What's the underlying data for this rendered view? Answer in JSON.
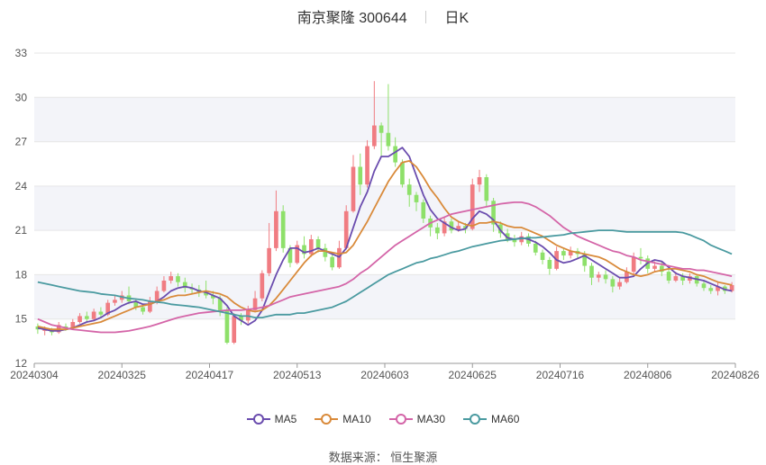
{
  "header": {
    "title": "南京聚隆 300644",
    "period": "日K"
  },
  "source": "数据来源： 恒生聚源",
  "chart_data": {
    "type": "candlestick",
    "ylim": [
      12,
      33
    ],
    "yticks": [
      12,
      15,
      18,
      21,
      24,
      27,
      30,
      33
    ],
    "xticks": [
      "20240304",
      "20240325",
      "20240417",
      "20240513",
      "20240603",
      "20240625",
      "20240716",
      "20240806",
      "20240826"
    ],
    "colors": {
      "up": "#f07c82",
      "down": "#8ee06a",
      "MA5": "#6a4cae",
      "MA10": "#d98a3a",
      "MA30": "#d465a8",
      "MA60": "#4a9aa0"
    },
    "legend": [
      "MA5",
      "MA10",
      "MA30",
      "MA60"
    ],
    "candles": [
      [
        14.5,
        14.3,
        14.7,
        14.0
      ],
      [
        14.2,
        14.3,
        14.5,
        13.9
      ],
      [
        14.3,
        14.1,
        14.4,
        13.9
      ],
      [
        14.1,
        14.6,
        14.8,
        14.0
      ],
      [
        14.5,
        14.4,
        14.7,
        14.2
      ],
      [
        14.4,
        14.8,
        15.0,
        14.3
      ],
      [
        14.8,
        15.2,
        15.4,
        14.7
      ],
      [
        15.2,
        15.0,
        15.5,
        14.8
      ],
      [
        15.0,
        15.5,
        15.7,
        14.9
      ],
      [
        15.5,
        15.3,
        15.8,
        15.1
      ],
      [
        15.3,
        16.1,
        16.3,
        15.2
      ],
      [
        16.1,
        16.3,
        16.6,
        15.9
      ],
      [
        16.3,
        16.6,
        16.9,
        16.1
      ],
      [
        16.6,
        16.2,
        17.2,
        16.0
      ],
      [
        16.2,
        15.8,
        16.4,
        15.6
      ],
      [
        15.8,
        15.5,
        16.0,
        15.3
      ],
      [
        15.5,
        16.2,
        16.5,
        15.4
      ],
      [
        16.2,
        16.9,
        17.2,
        16.0
      ],
      [
        16.9,
        17.6,
        17.9,
        16.8
      ],
      [
        17.6,
        17.9,
        18.2,
        17.4
      ],
      [
        17.9,
        17.5,
        18.1,
        17.2
      ],
      [
        17.5,
        17.1,
        17.8,
        16.8
      ],
      [
        17.1,
        17.0,
        17.4,
        16.7
      ],
      [
        17.0,
        16.8,
        17.3,
        16.5
      ],
      [
        16.8,
        16.6,
        17.6,
        16.4
      ],
      [
        16.6,
        16.4,
        16.9,
        16.0
      ],
      [
        16.4,
        15.6,
        16.6,
        15.2
      ],
      [
        15.6,
        13.4,
        15.8,
        13.3
      ],
      [
        13.4,
        15.2,
        15.4,
        13.3
      ],
      [
        15.2,
        14.9,
        15.4,
        14.6
      ],
      [
        14.9,
        15.6,
        15.9,
        14.7
      ],
      [
        15.6,
        16.4,
        16.9,
        15.5
      ],
      [
        16.4,
        18.1,
        18.3,
        16.2
      ],
      [
        18.1,
        19.8,
        21.5,
        17.9
      ],
      [
        19.8,
        22.3,
        23.7,
        19.6
      ],
      [
        22.3,
        19.8,
        22.7,
        19.5
      ],
      [
        19.8,
        18.8,
        20.0,
        18.5
      ],
      [
        18.8,
        20.0,
        20.3,
        18.7
      ],
      [
        20.0,
        19.4,
        20.6,
        19.1
      ],
      [
        19.4,
        20.4,
        20.7,
        19.2
      ],
      [
        20.4,
        19.8,
        20.6,
        19.5
      ],
      [
        19.8,
        19.2,
        20.1,
        18.9
      ],
      [
        19.2,
        18.5,
        19.4,
        18.3
      ],
      [
        18.5,
        19.8,
        20.3,
        18.4
      ],
      [
        19.8,
        22.3,
        22.7,
        19.7
      ],
      [
        22.3,
        25.3,
        26.1,
        22.2
      ],
      [
        25.3,
        24.1,
        26.2,
        23.4
      ],
      [
        24.1,
        26.7,
        27.1,
        23.9
      ],
      [
        26.7,
        28.1,
        31.1,
        26.5
      ],
      [
        28.1,
        27.6,
        28.3,
        26.0
      ],
      [
        27.6,
        26.7,
        30.9,
        26.4
      ],
      [
        26.7,
        25.6,
        27.3,
        25.3
      ],
      [
        25.6,
        24.1,
        25.8,
        23.9
      ],
      [
        24.1,
        23.4,
        24.5,
        22.6
      ],
      [
        23.4,
        22.9,
        23.6,
        22.3
      ],
      [
        22.9,
        21.8,
        23.1,
        21.5
      ],
      [
        21.8,
        21.2,
        22.0,
        20.6
      ],
      [
        21.2,
        20.8,
        21.5,
        20.4
      ],
      [
        20.8,
        21.6,
        21.9,
        20.6
      ],
      [
        21.6,
        21.0,
        21.8,
        20.8
      ],
      [
        21.0,
        21.3,
        21.6,
        20.9
      ],
      [
        21.3,
        21.1,
        21.5,
        20.8
      ],
      [
        21.1,
        24.1,
        24.5,
        21.0
      ],
      [
        24.1,
        24.6,
        25.1,
        23.6
      ],
      [
        24.6,
        23.0,
        24.8,
        22.6
      ],
      [
        23.0,
        21.4,
        23.2,
        20.9
      ],
      [
        21.4,
        20.8,
        21.6,
        20.5
      ],
      [
        20.8,
        20.4,
        21.1,
        20.2
      ],
      [
        20.4,
        20.2,
        20.7,
        19.9
      ],
      [
        20.2,
        20.6,
        20.9,
        20.0
      ],
      [
        20.6,
        20.1,
        20.8,
        19.9
      ],
      [
        20.1,
        19.5,
        20.3,
        19.3
      ],
      [
        19.5,
        19.0,
        19.7,
        18.7
      ],
      [
        19.0,
        18.4,
        19.2,
        18.0
      ],
      [
        18.4,
        19.6,
        19.9,
        18.3
      ],
      [
        19.6,
        19.3,
        19.8,
        19.0
      ],
      [
        19.3,
        19.6,
        19.9,
        19.1
      ],
      [
        19.6,
        19.4,
        19.8,
        19.1
      ],
      [
        19.4,
        18.6,
        19.6,
        18.2
      ],
      [
        18.6,
        17.8,
        18.8,
        17.3
      ],
      [
        17.8,
        18.0,
        18.2,
        17.5
      ],
      [
        18.0,
        17.7,
        18.3,
        17.4
      ],
      [
        17.7,
        17.2,
        17.9,
        16.8
      ],
      [
        17.2,
        17.5,
        17.8,
        17.0
      ],
      [
        17.5,
        18.2,
        18.5,
        17.4
      ],
      [
        18.2,
        19.2,
        19.5,
        18.0
      ],
      [
        19.2,
        19.1,
        19.8,
        18.7
      ],
      [
        19.1,
        18.4,
        19.3,
        18.1
      ],
      [
        18.4,
        18.6,
        18.9,
        18.2
      ],
      [
        18.6,
        18.2,
        18.9,
        17.9
      ],
      [
        18.2,
        17.6,
        18.4,
        17.4
      ],
      [
        17.6,
        17.9,
        18.2,
        17.5
      ],
      [
        17.9,
        17.6,
        18.1,
        17.3
      ],
      [
        17.6,
        17.9,
        18.1,
        17.4
      ],
      [
        17.9,
        17.4,
        18.0,
        17.2
      ],
      [
        17.4,
        17.1,
        17.6,
        16.9
      ],
      [
        17.1,
        16.9,
        17.3,
        16.7
      ],
      [
        16.9,
        17.2,
        17.5,
        16.6
      ],
      [
        17.2,
        16.9,
        17.3,
        16.7
      ],
      [
        16.9,
        17.3,
        17.5,
        16.8
      ]
    ],
    "ma": {
      "MA5": [
        14.4,
        14.3,
        14.2,
        14.2,
        14.3,
        14.4,
        14.6,
        14.8,
        14.9,
        15.1,
        15.4,
        15.6,
        15.9,
        16.1,
        16.2,
        16.0,
        16.0,
        16.2,
        16.5,
        16.9,
        17.1,
        17.2,
        17.1,
        16.9,
        16.8,
        16.6,
        16.4,
        15.9,
        15.2,
        14.9,
        14.6,
        14.9,
        15.6,
        16.8,
        18.0,
        19.0,
        19.8,
        19.8,
        19.5,
        19.6,
        19.8,
        19.6,
        19.4,
        19.2,
        19.8,
        21.2,
        22.6,
        23.6,
        25.0,
        26.0,
        26.0,
        26.3,
        26.6,
        26.0,
        24.7,
        23.4,
        22.4,
        21.8,
        21.5,
        21.2,
        21.0,
        21.1,
        21.8,
        22.3,
        22.1,
        21.7,
        21.0,
        20.5,
        20.4,
        20.5,
        20.4,
        20.2,
        19.9,
        19.5,
        19.0,
        18.8,
        18.9,
        19.1,
        19.3,
        19.0,
        18.7,
        18.4,
        18.1,
        17.8,
        17.8,
        17.9,
        18.4,
        18.8,
        19.0,
        18.9,
        18.5,
        18.1,
        17.9,
        17.8,
        17.7,
        17.6,
        17.4,
        17.2,
        17.0,
        16.9
      ],
      "MA10": [
        14.5,
        14.4,
        14.3,
        14.3,
        14.3,
        14.4,
        14.5,
        14.6,
        14.7,
        14.8,
        15.0,
        15.2,
        15.4,
        15.6,
        15.8,
        15.9,
        16.0,
        16.2,
        16.3,
        16.5,
        16.6,
        16.6,
        16.7,
        16.8,
        16.9,
        16.8,
        16.7,
        16.5,
        16.1,
        15.8,
        15.6,
        15.5,
        15.6,
        15.9,
        16.4,
        17.0,
        17.6,
        18.2,
        18.8,
        19.3,
        19.6,
        19.6,
        19.5,
        19.4,
        19.5,
        20.0,
        20.8,
        21.6,
        22.5,
        23.4,
        24.3,
        25.0,
        25.6,
        25.7,
        25.3,
        24.6,
        23.8,
        23.2,
        22.5,
        21.9,
        21.6,
        21.4,
        21.3,
        21.5,
        21.5,
        21.6,
        21.5,
        21.3,
        21.2,
        21.2,
        21.0,
        20.8,
        20.6,
        20.3,
        20.0,
        19.8,
        19.6,
        19.5,
        19.4,
        19.3,
        19.2,
        19.0,
        18.7,
        18.4,
        18.2,
        18.0,
        17.9,
        18.0,
        18.2,
        18.3,
        18.4,
        18.4,
        18.3,
        18.2,
        18.0,
        17.9,
        17.7,
        17.5,
        17.4,
        17.3
      ],
      "MA30": [
        15.0,
        14.8,
        14.6,
        14.5,
        14.4,
        14.3,
        14.25,
        14.2,
        14.15,
        14.1,
        14.1,
        14.1,
        14.15,
        14.2,
        14.3,
        14.4,
        14.5,
        14.65,
        14.8,
        14.95,
        15.1,
        15.2,
        15.3,
        15.4,
        15.45,
        15.5,
        15.55,
        15.6,
        15.6,
        15.6,
        15.65,
        15.7,
        15.8,
        15.9,
        16.1,
        16.3,
        16.5,
        16.6,
        16.7,
        16.8,
        16.9,
        17.0,
        17.1,
        17.2,
        17.4,
        17.7,
        18.1,
        18.4,
        18.8,
        19.2,
        19.6,
        20.0,
        20.3,
        20.6,
        20.9,
        21.2,
        21.5,
        21.7,
        21.9,
        22.1,
        22.2,
        22.3,
        22.4,
        22.5,
        22.6,
        22.7,
        22.8,
        22.85,
        22.9,
        22.9,
        22.8,
        22.6,
        22.3,
        22.0,
        21.6,
        21.2,
        20.9,
        20.6,
        20.4,
        20.2,
        20.0,
        19.8,
        19.6,
        19.5,
        19.3,
        19.2,
        19.0,
        18.9,
        18.8,
        18.7,
        18.6,
        18.5,
        18.4,
        18.4,
        18.3,
        18.3,
        18.2,
        18.1,
        18.0,
        17.9
      ],
      "MA60": [
        17.5,
        17.4,
        17.3,
        17.2,
        17.1,
        17.0,
        16.9,
        16.85,
        16.8,
        16.7,
        16.65,
        16.6,
        16.5,
        16.4,
        16.35,
        16.3,
        16.2,
        16.15,
        16.1,
        16.0,
        15.95,
        15.9,
        15.85,
        15.8,
        15.7,
        15.6,
        15.5,
        15.4,
        15.3,
        15.2,
        15.2,
        15.1,
        15.1,
        15.2,
        15.3,
        15.3,
        15.3,
        15.4,
        15.4,
        15.5,
        15.6,
        15.7,
        15.8,
        16.0,
        16.2,
        16.5,
        16.8,
        17.1,
        17.4,
        17.7,
        18.0,
        18.2,
        18.4,
        18.6,
        18.8,
        18.9,
        19.1,
        19.2,
        19.35,
        19.5,
        19.6,
        19.75,
        19.9,
        20.0,
        20.1,
        20.2,
        20.3,
        20.35,
        20.4,
        20.45,
        20.5,
        20.5,
        20.55,
        20.6,
        20.65,
        20.7,
        20.8,
        20.85,
        20.9,
        20.95,
        21.0,
        21.0,
        21.0,
        20.95,
        20.9,
        20.9,
        20.9,
        20.9,
        20.9,
        20.9,
        20.9,
        20.9,
        20.85,
        20.7,
        20.5,
        20.3,
        20.0,
        19.8,
        19.6,
        19.4
      ]
    }
  }
}
